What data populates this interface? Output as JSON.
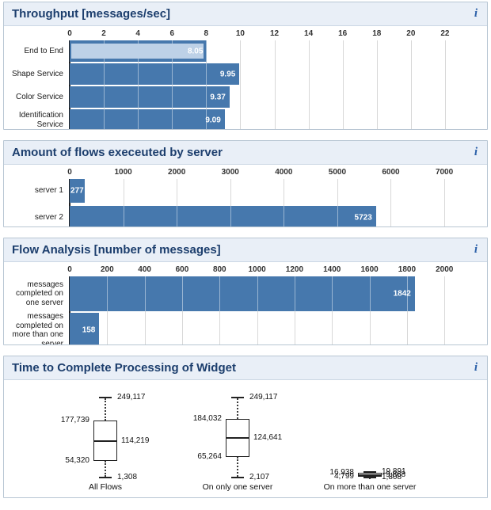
{
  "ui": {
    "info_icon": "i"
  },
  "theme": {
    "bar_color": "#4678ad",
    "bar_highlight": "#bdd1e7",
    "panel_header_bg": "#e9eff7",
    "panel_header_border": "#cbd7e4",
    "panel_border": "#b8c6d3",
    "title_color": "#1c3e6d",
    "info_color": "#2a5fa8",
    "grid_color": "#d8d8d8",
    "axis_line_color": "#222222",
    "tick_label_color": "#333333"
  },
  "chart_data": [
    {
      "type": "bar",
      "orientation": "horizontal",
      "title": "Throughput [messages/sec]",
      "categories": [
        "End to End",
        "Shape Service",
        "Color Service",
        "Identification Service"
      ],
      "values": [
        8.05,
        9.95,
        9.37,
        9.09
      ],
      "value_labels": [
        "8.05",
        "9.95",
        "9.37",
        "9.09"
      ],
      "xticks": [
        0,
        2,
        4,
        6,
        8,
        10,
        12,
        14,
        16,
        18,
        20,
        22
      ],
      "xmax": 24,
      "grid": true,
      "highlight": {
        "category_index": 0,
        "value": 7.75
      }
    },
    {
      "type": "bar",
      "orientation": "horizontal",
      "title": "Amount of flows execeuted by server",
      "categories": [
        "server 1",
        "server 2"
      ],
      "values": [
        277,
        5723
      ],
      "value_labels": [
        "277",
        "5723"
      ],
      "xticks": [
        0,
        1000,
        2000,
        3000,
        4000,
        5000,
        6000,
        7000
      ],
      "xmax": 7650,
      "grid": true
    },
    {
      "type": "bar",
      "orientation": "horizontal",
      "title": "Flow Analysis [number of messages]",
      "categories": [
        "messages completed on one server",
        "messages completed on more than one server"
      ],
      "values": [
        1842,
        158
      ],
      "value_labels": [
        "1842",
        "158"
      ],
      "xticks": [
        0,
        200,
        400,
        600,
        800,
        1000,
        1200,
        1400,
        1600,
        1800,
        2000
      ],
      "xmax": 2185,
      "grid": true
    },
    {
      "type": "boxplot",
      "title": "Time to Complete Processing of Widget",
      "ymax": 250000,
      "groups": [
        {
          "label": "All Flows",
          "max": {
            "v": 249117,
            "text": "249,117"
          },
          "q3": {
            "v": 177739,
            "text": "177,739"
          },
          "median": {
            "v": 114219,
            "text": "114,219"
          },
          "q1": {
            "v": 54320,
            "text": "54,320"
          },
          "min": {
            "v": 1308,
            "text": "1,308"
          }
        },
        {
          "label": "On only one server",
          "max": {
            "v": 249117,
            "text": "249,117"
          },
          "q3": {
            "v": 184032,
            "text": "184,032"
          },
          "median": {
            "v": 124641,
            "text": "124,641"
          },
          "q1": {
            "v": 65264,
            "text": "65,264"
          },
          "min": {
            "v": 2107,
            "text": "2,107"
          }
        },
        {
          "label": "On more than one server",
          "max": {
            "v": 19891,
            "text": "19,891"
          },
          "q3": {
            "v": 16938,
            "text": "16,938"
          },
          "median": {
            "v": 9868,
            "text": "9,868"
          },
          "q1": {
            "v": 4799,
            "text": "4,799"
          },
          "min": {
            "v": 1808,
            "text": "1,808"
          }
        }
      ]
    }
  ]
}
